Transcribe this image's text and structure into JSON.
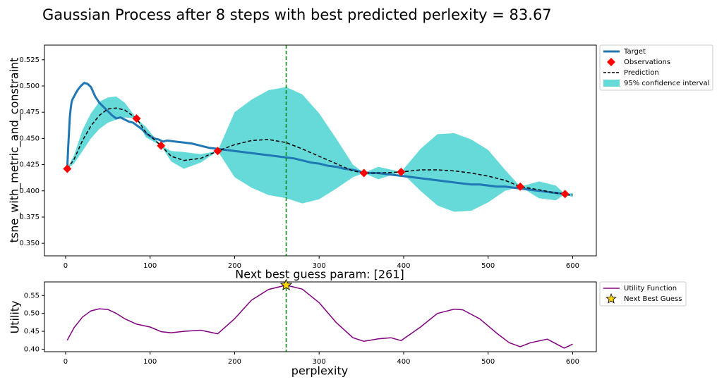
{
  "suptitle": "Gaussian Process after 8 steps with best predicted perlexity = 83.67",
  "legend_placement": "outside-right-top",
  "colors": {
    "target": "#1f77b4",
    "observations": "#ff0000",
    "prediction": "#000000",
    "confidence": "#66d9d9",
    "next_guess_line": "#008000",
    "utility": "#800080",
    "star": "#ffd700"
  },
  "chart_data": [
    {
      "type": "line",
      "title": "",
      "xlabel": "Next best guess param: [261]",
      "ylabel": "tsne_with_metric_and_constraint",
      "xlim": [
        -25,
        628
      ],
      "ylim": [
        0.338,
        0.539
      ],
      "x_ticks": [
        0,
        100,
        200,
        300,
        400,
        500,
        600
      ],
      "y_ticks": [
        0.35,
        0.375,
        0.4,
        0.425,
        0.45,
        0.475,
        0.5,
        0.525
      ],
      "y_tick_labels": [
        "0.350",
        "0.375",
        "0.400",
        "0.425",
        "0.450",
        "0.475",
        "0.500",
        "0.525"
      ],
      "grid": false,
      "legend": [
        "Target",
        "Observations",
        "Prediction",
        "95% confidence interval"
      ],
      "next_guess_x": 261,
      "series": [
        {
          "name": "Target",
          "style": "solid-thick",
          "x": [
            2,
            3,
            4,
            5,
            6,
            7,
            8,
            10,
            12,
            15,
            18,
            22,
            26,
            30,
            35,
            40,
            45,
            50,
            55,
            60,
            65,
            70,
            75,
            80,
            85,
            90,
            95,
            100,
            105,
            110,
            115,
            120,
            130,
            140,
            150,
            160,
            170,
            180,
            190,
            200,
            210,
            220,
            230,
            240,
            250,
            260,
            270,
            280,
            290,
            300,
            310,
            320,
            330,
            340,
            350,
            360,
            370,
            380,
            390,
            400,
            410,
            420,
            430,
            440,
            450,
            460,
            470,
            480,
            490,
            500,
            510,
            520,
            530,
            540,
            550,
            560,
            570,
            580,
            590,
            597
          ],
          "y": [
            0.421,
            0.44,
            0.455,
            0.47,
            0.478,
            0.484,
            0.487,
            0.49,
            0.493,
            0.497,
            0.5,
            0.503,
            0.502,
            0.499,
            0.49,
            0.484,
            0.48,
            0.476,
            0.472,
            0.469,
            0.47,
            0.468,
            0.466,
            0.465,
            0.462,
            0.459,
            0.455,
            0.452,
            0.45,
            0.449,
            0.447,
            0.448,
            0.447,
            0.446,
            0.445,
            0.443,
            0.441,
            0.44,
            0.439,
            0.438,
            0.437,
            0.436,
            0.435,
            0.434,
            0.433,
            0.432,
            0.431,
            0.429,
            0.427,
            0.426,
            0.424,
            0.423,
            0.421,
            0.42,
            0.418,
            0.417,
            0.417,
            0.416,
            0.415,
            0.414,
            0.413,
            0.412,
            0.411,
            0.41,
            0.409,
            0.408,
            0.407,
            0.406,
            0.406,
            0.405,
            0.404,
            0.404,
            0.403,
            0.402,
            0.401,
            0.4,
            0.399,
            0.398,
            0.397,
            0.396
          ]
        },
        {
          "name": "Observations",
          "style": "diamond-markers",
          "x": [
            2,
            84,
            113,
            180,
            353,
            397,
            538,
            591
          ],
          "y": [
            0.421,
            0.469,
            0.443,
            0.438,
            0.417,
            0.418,
            0.404,
            0.397
          ]
        },
        {
          "name": "Prediction",
          "style": "dashed",
          "x": [
            2,
            10,
            20,
            30,
            40,
            50,
            60,
            70,
            84,
            95,
            113,
            125,
            140,
            160,
            180,
            200,
            220,
            240,
            261,
            280,
            300,
            320,
            340,
            353,
            370,
            397,
            420,
            440,
            460,
            480,
            500,
            520,
            538,
            560,
            580,
            591,
            600
          ],
          "y": [
            0.421,
            0.43,
            0.448,
            0.462,
            0.472,
            0.478,
            0.479,
            0.477,
            0.469,
            0.456,
            0.443,
            0.433,
            0.429,
            0.431,
            0.438,
            0.444,
            0.448,
            0.449,
            0.446,
            0.44,
            0.433,
            0.426,
            0.419,
            0.417,
            0.417,
            0.418,
            0.42,
            0.42,
            0.419,
            0.417,
            0.414,
            0.41,
            0.404,
            0.401,
            0.398,
            0.397,
            0.396
          ]
        },
        {
          "name": "95% confidence interval",
          "style": "filled-band",
          "x": [
            2,
            10,
            20,
            30,
            40,
            50,
            60,
            70,
            84,
            95,
            113,
            125,
            140,
            160,
            180,
            200,
            220,
            240,
            261,
            280,
            300,
            320,
            340,
            353,
            370,
            397,
            420,
            440,
            460,
            480,
            500,
            520,
            538,
            560,
            580,
            591,
            600
          ],
          "y_lower": [
            0.421,
            0.426,
            0.438,
            0.45,
            0.459,
            0.465,
            0.468,
            0.47,
            0.469,
            0.451,
            0.443,
            0.428,
            0.421,
            0.427,
            0.438,
            0.413,
            0.403,
            0.396,
            0.393,
            0.388,
            0.392,
            0.402,
            0.413,
            0.417,
            0.411,
            0.418,
            0.4,
            0.386,
            0.38,
            0.381,
            0.389,
            0.4,
            0.404,
            0.393,
            0.391,
            0.397,
            0.394
          ],
          "y_upper": [
            0.421,
            0.434,
            0.458,
            0.474,
            0.485,
            0.489,
            0.49,
            0.484,
            0.469,
            0.461,
            0.443,
            0.438,
            0.437,
            0.435,
            0.438,
            0.475,
            0.487,
            0.496,
            0.499,
            0.492,
            0.474,
            0.45,
            0.425,
            0.417,
            0.423,
            0.418,
            0.44,
            0.454,
            0.455,
            0.449,
            0.439,
            0.42,
            0.404,
            0.409,
            0.405,
            0.397,
            0.398
          ]
        }
      ]
    },
    {
      "type": "line",
      "title": "",
      "xlabel": "perplexity",
      "ylabel": "Utility",
      "xlim": [
        -25,
        628
      ],
      "ylim": [
        0.393,
        0.588
      ],
      "x_ticks": [
        0,
        100,
        200,
        300,
        400,
        500,
        600
      ],
      "y_ticks": [
        0.4,
        0.45,
        0.5,
        0.55
      ],
      "y_tick_labels": [
        "0.40",
        "0.45",
        "0.50",
        "0.55"
      ],
      "grid": false,
      "legend": [
        "Utility Function",
        "Next Best Guess"
      ],
      "next_guess_x": 261,
      "series": [
        {
          "name": "Utility Function",
          "style": "solid",
          "x": [
            2,
            10,
            20,
            30,
            40,
            50,
            60,
            70,
            84,
            100,
            113,
            125,
            140,
            160,
            180,
            200,
            220,
            240,
            261,
            280,
            300,
            320,
            340,
            353,
            370,
            385,
            397,
            420,
            440,
            460,
            470,
            490,
            510,
            525,
            538,
            550,
            570,
            590,
            600
          ],
          "y": [
            0.425,
            0.46,
            0.49,
            0.507,
            0.513,
            0.511,
            0.5,
            0.485,
            0.47,
            0.462,
            0.449,
            0.446,
            0.45,
            0.453,
            0.443,
            0.485,
            0.537,
            0.567,
            0.579,
            0.568,
            0.53,
            0.475,
            0.432,
            0.422,
            0.429,
            0.432,
            0.424,
            0.462,
            0.5,
            0.512,
            0.51,
            0.485,
            0.445,
            0.418,
            0.407,
            0.418,
            0.428,
            0.403,
            0.414
          ]
        },
        {
          "name": "Next Best Guess",
          "style": "star-marker",
          "x": [
            261
          ],
          "y": [
            0.579
          ]
        }
      ]
    }
  ]
}
